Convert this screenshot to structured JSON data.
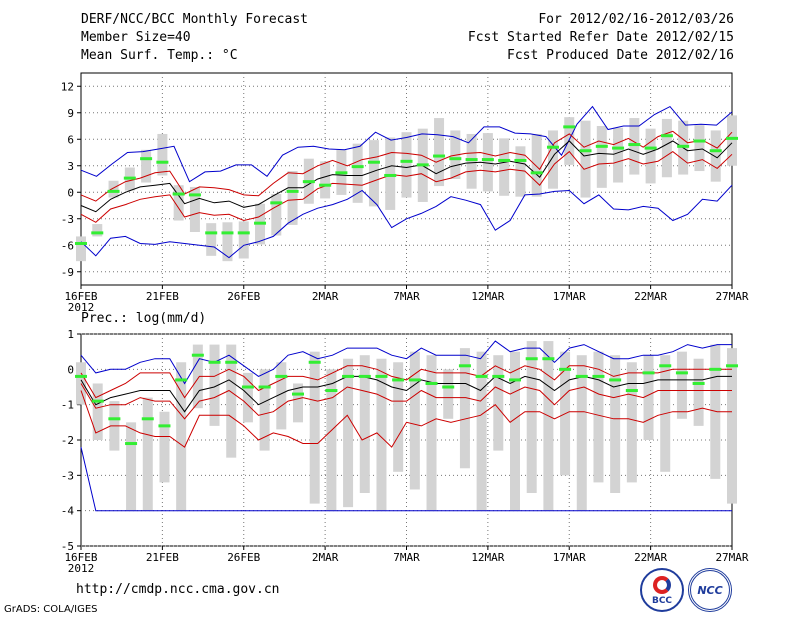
{
  "header": {
    "title": "DERF/NCC/BCC Monthly Forecast",
    "member_size": "Member Size=40",
    "variable1": "Mean Surf. Temp.: °C",
    "period": "For 2012/02/16-2012/03/26",
    "started": "Fcst Started Refer Date 2012/02/15",
    "produced": "Fcst Produced Date 2012/02/16"
  },
  "panel2_label": "Prec.: log(mm/d)",
  "footer": {
    "url": "http://cmdp.ncc.cma.gov.cn",
    "grads": "GrADS: COLA/IGES"
  },
  "logos": {
    "bcc": "BCC",
    "ncc": "NCC"
  },
  "colors": {
    "max_min": "#0000cc",
    "quantile": "#cc0000",
    "median": "#000000",
    "box": "#d3d3d3",
    "mean": "#33ee33"
  },
  "chart_data": [
    {
      "type": "line",
      "title": "Mean Surf. Temp.: °C",
      "xtick_labels": [
        "16FEB",
        "21FEB",
        "26FEB",
        "2MAR",
        "7MAR",
        "12MAR",
        "17MAR",
        "22MAR",
        "27MAR"
      ],
      "xtick_year": "2012",
      "yticks": [
        12,
        9,
        6,
        3,
        0,
        -3,
        -6,
        -9
      ],
      "ylim": [
        -10.5,
        13.5
      ],
      "days": 41,
      "series": [
        {
          "name": "max",
          "values": [
            2.5,
            1.8,
            3.2,
            4.5,
            4.6,
            4.9,
            5.2,
            1.2,
            2.3,
            2.4,
            3.1,
            3.1,
            1.8,
            4.2,
            5.1,
            5.2,
            4.9,
            4.8,
            5.2,
            6.8,
            5.9,
            6.2,
            6.6,
            6.5,
            6.3,
            5.6,
            7.4,
            7.4,
            6.7,
            6.6,
            6.3,
            4.2,
            7.7,
            9.7,
            7.1,
            7.5,
            7.5,
            8.8,
            9.7,
            7.6,
            7.7,
            7.6,
            9.1
          ]
        },
        {
          "name": "upper",
          "values": [
            -0.3,
            -1.0,
            0.3,
            1.2,
            1.6,
            2.2,
            2.4,
            -0.2,
            0.6,
            0.5,
            0.3,
            -0.3,
            -0.4,
            1.0,
            2.2,
            2.1,
            3.0,
            3.6,
            3.0,
            3.7,
            4.0,
            4.5,
            4.4,
            4.2,
            3.4,
            4.1,
            4.4,
            4.5,
            4.1,
            4.5,
            4.2,
            2.6,
            5.6,
            6.6,
            5.1,
            5.8,
            5.4,
            6.1,
            5.1,
            6.3,
            6.9,
            5.6,
            5.9,
            5.0,
            6.8
          ]
        },
        {
          "name": "median",
          "values": [
            -1.5,
            -2.2,
            -0.8,
            0.0,
            0.6,
            0.8,
            1.0,
            -1.3,
            -0.7,
            -1.2,
            -1.0,
            -1.7,
            -1.4,
            -0.4,
            0.5,
            0.5,
            1.5,
            2.0,
            1.9,
            1.9,
            2.5,
            3.0,
            2.8,
            3.1,
            2.1,
            2.9,
            3.3,
            3.4,
            3.2,
            3.5,
            3.2,
            1.7,
            4.3,
            5.8,
            4.1,
            4.4,
            4.3,
            4.9,
            4.3,
            4.9,
            5.8,
            4.7,
            4.9,
            3.9,
            5.6
          ]
        },
        {
          "name": "lower",
          "values": [
            -2.5,
            -3.4,
            -1.9,
            -1.4,
            -0.8,
            -0.5,
            -0.3,
            -2.8,
            -2.3,
            -2.6,
            -2.5,
            -3.2,
            -2.8,
            -1.8,
            -0.9,
            -0.8,
            0.4,
            1.0,
            0.9,
            0.8,
            1.4,
            2.0,
            1.8,
            2.1,
            1.2,
            1.6,
            2.3,
            2.5,
            2.3,
            2.6,
            2.4,
            0.8,
            3.2,
            4.6,
            2.6,
            3.2,
            3.3,
            3.8,
            3.2,
            3.5,
            4.6,
            3.3,
            3.7,
            2.7,
            4.3
          ]
        },
        {
          "name": "min",
          "values": [
            -5.6,
            -7.2,
            -5.2,
            -5.0,
            -5.8,
            -5.9,
            -5.6,
            -5.8,
            -6.0,
            -6.2,
            -7.4,
            -6.0,
            -5.6,
            -5.0,
            -3.5,
            -2.5,
            -1.8,
            -1.4,
            -0.8,
            0.2,
            -1.4,
            -4.0,
            -3.0,
            -2.4,
            -1.6,
            -0.5,
            -0.9,
            -1.4,
            -4.3,
            -3.2,
            -0.3,
            -0.2,
            0.1,
            0.2,
            -1.3,
            -0.3,
            -1.9,
            -2.0,
            -1.6,
            -1.8,
            -3.2,
            -2.5,
            -0.8,
            -1.0,
            0.8
          ]
        },
        {
          "name": "mean",
          "values": [
            -5.8,
            -4.6,
            0.1,
            1.6,
            3.8,
            3.4,
            -0.2,
            -0.3,
            -4.6,
            -4.6,
            -4.6,
            -3.5,
            -1.2,
            0.1,
            1.2,
            0.8,
            2.2,
            2.9,
            3.4,
            1.9,
            3.5,
            3.1,
            4.1,
            3.8,
            3.7,
            3.7,
            3.6,
            3.6,
            2.2,
            5.1,
            7.4,
            4.7,
            5.2,
            5.0,
            5.4,
            5.0,
            6.4,
            5.2,
            5.8,
            4.7,
            6.1
          ]
        },
        {
          "name": "box_hi",
          "values": [
            -5.0,
            -3.6,
            1.3,
            2.8,
            4.8,
            6.6,
            0.8,
            0.6,
            -3.5,
            -3.4,
            -3.3,
            -1.3,
            -0.2,
            2.4,
            3.8,
            3.5,
            4.8,
            5.5,
            5.9,
            6.2,
            6.8,
            7.2,
            8.4,
            7.0,
            6.6,
            6.7,
            6.1,
            5.2,
            6.6,
            7.0,
            8.5,
            8.1,
            7.5,
            7.3,
            8.4,
            7.2,
            8.3,
            8.1,
            7.6,
            7.0,
            8.7
          ]
        },
        {
          "name": "box_lo",
          "values": [
            -7.8,
            -5.0,
            -0.6,
            0.2,
            1.1,
            1.9,
            -3.2,
            -4.5,
            -7.2,
            -7.8,
            -7.5,
            -5.9,
            -4.9,
            -3.7,
            -1.3,
            -0.7,
            -0.3,
            -1.2,
            -1.6,
            -2.0,
            -0.6,
            -1.1,
            0.7,
            1.5,
            0.4,
            0.1,
            -0.4,
            -0.5,
            -0.5,
            0.4,
            3.1,
            -0.6,
            0.5,
            1.1,
            2.0,
            1.0,
            1.7,
            2.0,
            2.4,
            1.2,
            3.0
          ]
        }
      ]
    },
    {
      "type": "line",
      "title": "Prec.: log(mm/d)",
      "xtick_labels": [
        "16FEB",
        "21FEB",
        "26FEB",
        "2MAR",
        "7MAR",
        "12MAR",
        "17MAR",
        "22MAR",
        "27MAR"
      ],
      "xtick_year": "2012",
      "yticks": [
        1,
        0,
        -1,
        -2,
        -3,
        -4,
        -5
      ],
      "ylim": [
        -5,
        1
      ],
      "days": 41,
      "series": [
        {
          "name": "max",
          "values": [
            0.4,
            -0.1,
            0.0,
            0.0,
            0.2,
            0.3,
            0.3,
            -0.4,
            0.3,
            0.2,
            0.4,
            0.1,
            -0.2,
            0.0,
            0.4,
            0.5,
            0.3,
            0.4,
            0.6,
            0.6,
            0.6,
            0.4,
            0.3,
            0.6,
            0.4,
            0.4,
            0.4,
            0.3,
            0.8,
            0.5,
            0.6,
            0.6,
            0.2,
            0.6,
            0.7,
            0.5,
            0.3,
            0.3,
            0.4,
            0.4,
            0.5,
            0.7,
            0.6,
            0.7,
            0.7
          ]
        },
        {
          "name": "upper",
          "values": [
            -0.1,
            -0.8,
            -0.6,
            -0.4,
            -0.1,
            -0.1,
            -0.1,
            -0.8,
            -0.2,
            -0.2,
            0.0,
            -0.2,
            -0.6,
            -0.4,
            -0.2,
            -0.2,
            -0.3,
            -0.1,
            0.1,
            0.1,
            0.0,
            -0.2,
            -0.3,
            0.0,
            -0.1,
            -0.1,
            -0.1,
            -0.2,
            0.1,
            -0.1,
            0.1,
            0.0,
            -0.3,
            0.1,
            0.1,
            0.0,
            -0.2,
            -0.1,
            -0.1,
            -0.1,
            0.0,
            0.0,
            0.0,
            0.0,
            0.0
          ]
        },
        {
          "name": "median",
          "values": [
            -0.3,
            -1.0,
            -0.8,
            -0.7,
            -0.6,
            -0.6,
            -0.6,
            -1.2,
            -0.6,
            -0.5,
            -0.3,
            -0.6,
            -1.0,
            -0.8,
            -0.6,
            -0.5,
            -0.5,
            -0.4,
            -0.2,
            -0.2,
            -0.3,
            -0.5,
            -0.6,
            -0.3,
            -0.4,
            -0.4,
            -0.4,
            -0.6,
            -0.2,
            -0.4,
            -0.2,
            -0.3,
            -0.6,
            -0.3,
            -0.2,
            -0.3,
            -0.5,
            -0.4,
            -0.4,
            -0.3,
            -0.3,
            -0.3,
            -0.3,
            -0.2,
            -0.2
          ]
        },
        {
          "name": "lower",
          "values": [
            -0.4,
            -1.1,
            -1.0,
            -1.0,
            -0.8,
            -0.9,
            -0.9,
            -1.4,
            -0.9,
            -0.8,
            -0.6,
            -0.9,
            -1.3,
            -1.2,
            -0.9,
            -0.8,
            -0.9,
            -0.8,
            -0.5,
            -0.6,
            -0.7,
            -0.9,
            -0.9,
            -0.6,
            -0.8,
            -0.8,
            -0.8,
            -0.9,
            -0.5,
            -0.7,
            -0.5,
            -0.6,
            -1.0,
            -0.6,
            -0.5,
            -0.7,
            -0.8,
            -0.7,
            -0.8,
            -0.6,
            -0.6,
            -0.6,
            -0.6,
            -0.6,
            -0.6
          ]
        },
        {
          "name": "q10",
          "values": [
            -0.6,
            -1.8,
            -1.6,
            -1.6,
            -1.8,
            -1.9,
            -1.9,
            -2.2,
            -1.3,
            -1.3,
            -1.3,
            -1.6,
            -2.0,
            -1.8,
            -1.9,
            -2.1,
            -2.1,
            -1.7,
            -1.3,
            -2.0,
            -1.8,
            -2.2,
            -1.5,
            -1.6,
            -1.4,
            -1.5,
            -1.4,
            -1.3,
            -1.0,
            -1.5,
            -1.2,
            -1.2,
            -1.4,
            -1.2,
            -1.2,
            -1.3,
            -1.4,
            -1.4,
            -1.5,
            -1.3,
            -1.2,
            -1.2,
            -1.1,
            -1.2,
            -1.2
          ]
        },
        {
          "name": "min",
          "values": [
            -2.2,
            -4.0,
            -4.0,
            -4.0,
            -4.0,
            -4.0,
            -4.0,
            -4.0,
            -4.0,
            -4.0,
            -4.0,
            -4.0,
            -4.0,
            -4.0,
            -4.0,
            -4.0,
            -4.0,
            -4.0,
            -4.0,
            -4.0,
            -4.0,
            -4.0,
            -4.0,
            -4.0,
            -4.0,
            -4.0,
            -4.0,
            -4.0,
            -4.0,
            -4.0,
            -4.0,
            -4.0,
            -4.0,
            -4.0,
            -4.0,
            -4.0,
            -4.0,
            -4.0,
            -4.0,
            -4.0,
            -4.0,
            -4.0,
            -4.0,
            -4.0,
            -4.0
          ]
        },
        {
          "name": "mean",
          "values": [
            -0.2,
            -0.9,
            -1.4,
            -2.1,
            -1.4,
            -1.6,
            -0.3,
            0.4,
            0.2,
            0.2,
            -0.5,
            -0.5,
            -0.2,
            -0.7,
            0.2,
            -0.6,
            -0.2,
            -0.2,
            -0.2,
            -0.3,
            -0.3,
            -0.4,
            -0.5,
            0.1,
            -0.2,
            -0.2,
            -0.3,
            0.3,
            0.3,
            0.0,
            -0.2,
            -0.2,
            -0.3,
            -0.6,
            -0.1,
            0.1,
            -0.1,
            -0.4,
            0.0,
            0.1
          ]
        },
        {
          "name": "box_hi",
          "values": [
            0.2,
            -0.4,
            -0.9,
            -1.5,
            -0.8,
            -1.2,
            0.2,
            0.7,
            0.7,
            0.7,
            -0.1,
            0.0,
            0.2,
            -0.4,
            0.5,
            0.0,
            0.3,
            0.4,
            0.3,
            0.2,
            0.5,
            0.4,
            0.0,
            0.6,
            0.5,
            0.4,
            0.5,
            0.8,
            0.8,
            0.5,
            0.4,
            0.5,
            0.4,
            0.2,
            0.4,
            0.4,
            0.5,
            0.3,
            0.7,
            0.6
          ]
        },
        {
          "name": "box_lo",
          "values": [
            -1.0,
            -2.0,
            -2.3,
            -4.0,
            -4.0,
            -3.2,
            -4.0,
            -1.1,
            -1.6,
            -2.5,
            -1.5,
            -2.3,
            -1.7,
            -1.5,
            -3.8,
            -4.0,
            -3.9,
            -3.5,
            -4.0,
            -2.9,
            -3.4,
            -4.0,
            -1.4,
            -2.8,
            -4.0,
            -2.3,
            -4.0,
            -3.5,
            -4.0,
            -3.0,
            -4.0,
            -3.2,
            -3.5,
            -3.2,
            -2.0,
            -2.9,
            -1.4,
            -1.6,
            -3.1,
            -3.8
          ]
        }
      ]
    }
  ]
}
